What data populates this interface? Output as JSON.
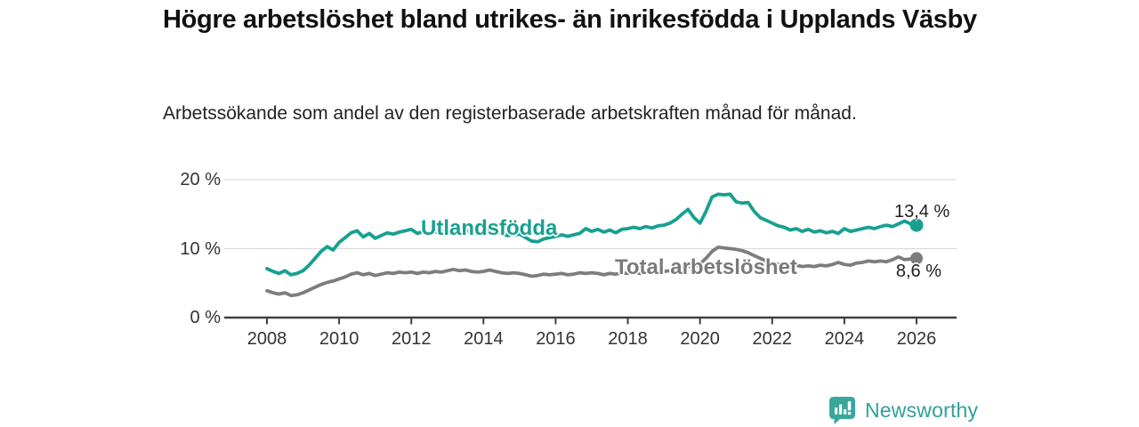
{
  "header": {
    "title": "Högre arbetslöshet bland utrikes- än inrikesfödda i Upplands Väsby",
    "subtitle": "Arbetssökande som andel av den registerbaserade arbetskraften månad för månad."
  },
  "chart_data": {
    "type": "line",
    "title": "Högre arbetslöshet bland utrikes- än inrikesfödda i Upplands Väsby",
    "subtitle": "Arbetssökande som andel av den registerbaserade arbetskraften månad för månad.",
    "xlabel": "",
    "ylabel": "",
    "unit": "%",
    "grid": "horizontal",
    "legend_position": "inline-labels-on-lines",
    "ylim": [
      0,
      20
    ],
    "y_tick_values": [
      0,
      10,
      20
    ],
    "y_tick_labels": [
      "0 %",
      "10 %",
      "20 %"
    ],
    "y_grid_values": [
      10,
      20
    ],
    "x_tick_years": [
      2008,
      2010,
      2012,
      2014,
      2016,
      2018,
      2020,
      2022,
      2024,
      2026
    ],
    "x_tick_labels": [
      "2008",
      "2010",
      "2012",
      "2014",
      "2016",
      "2018",
      "2020",
      "2022",
      "2024",
      "2026"
    ],
    "x_start": 2008.0,
    "x_step": 0.16667,
    "x_end": 2026.0,
    "series": [
      {
        "name": "Utlandsfödda",
        "color": "#17a090",
        "end_label": "13,4 %",
        "end_value": 13.4,
        "values": [
          7.1,
          6.7,
          6.4,
          6.8,
          6.2,
          6.4,
          6.8,
          7.6,
          8.6,
          9.6,
          10.3,
          9.8,
          10.9,
          11.6,
          12.3,
          12.6,
          11.7,
          12.2,
          11.5,
          11.9,
          12.3,
          12.1,
          12.4,
          12.6,
          12.8,
          12.2,
          12.5,
          12.2,
          12.4,
          12.6,
          12.4,
          12.6,
          12.5,
          12.7,
          12.4,
          12.2,
          12.4,
          12.8,
          12.5,
          12.2,
          11.9,
          12.0,
          12.1,
          11.6,
          11.1,
          11.0,
          11.4,
          11.6,
          11.8,
          12.0,
          11.8,
          12.0,
          12.2,
          12.9,
          12.5,
          12.8,
          12.4,
          12.7,
          12.3,
          12.8,
          12.9,
          13.1,
          12.9,
          13.2,
          13.0,
          13.3,
          13.4,
          13.7,
          14.2,
          15.0,
          15.7,
          14.5,
          13.7,
          15.4,
          17.5,
          17.9,
          17.8,
          17.9,
          16.8,
          16.6,
          16.7,
          15.4,
          14.5,
          14.1,
          13.7,
          13.3,
          13.1,
          12.7,
          12.9,
          12.5,
          12.8,
          12.4,
          12.6,
          12.3,
          12.5,
          12.2,
          12.9,
          12.5,
          12.7,
          12.9,
          13.1,
          12.9,
          13.2,
          13.4,
          13.2,
          13.6,
          14.0,
          13.6,
          13.4
        ]
      },
      {
        "name": "Total arbetslöshet",
        "color": "#7d7d7d",
        "end_label": "8,6 %",
        "end_value": 8.6,
        "values": [
          3.9,
          3.6,
          3.4,
          3.6,
          3.2,
          3.3,
          3.6,
          4.0,
          4.4,
          4.8,
          5.1,
          5.3,
          5.6,
          5.9,
          6.3,
          6.5,
          6.2,
          6.4,
          6.1,
          6.3,
          6.5,
          6.4,
          6.6,
          6.5,
          6.6,
          6.4,
          6.6,
          6.5,
          6.7,
          6.6,
          6.8,
          7.0,
          6.8,
          6.9,
          6.7,
          6.6,
          6.7,
          6.9,
          6.7,
          6.5,
          6.4,
          6.5,
          6.4,
          6.2,
          6.0,
          6.1,
          6.3,
          6.2,
          6.3,
          6.4,
          6.2,
          6.3,
          6.5,
          6.4,
          6.5,
          6.4,
          6.2,
          6.4,
          6.3,
          6.5,
          6.4,
          6.6,
          6.4,
          6.5,
          6.7,
          6.6,
          6.7,
          6.8,
          7.0,
          7.2,
          7.5,
          7.3,
          7.8,
          8.6,
          9.6,
          10.2,
          10.1,
          10.0,
          9.9,
          9.7,
          9.4,
          9.0,
          8.6,
          8.2,
          7.9,
          7.7,
          7.6,
          7.5,
          7.6,
          7.4,
          7.5,
          7.4,
          7.6,
          7.5,
          7.7,
          8.0,
          7.7,
          7.6,
          7.9,
          8.0,
          8.2,
          8.1,
          8.2,
          8.1,
          8.4,
          8.8,
          8.4,
          8.5,
          8.6
        ]
      }
    ]
  },
  "footer": {
    "brand": "Newsworthy",
    "brand_color": "#2fa099",
    "logo_icon": "newsworthy-speech-bubble-bar-chart"
  },
  "colors": {
    "accent_teal": "#17a090",
    "line_gray": "#7d7d7d",
    "gridline": "#dcdcdc",
    "axis": "#404040"
  }
}
